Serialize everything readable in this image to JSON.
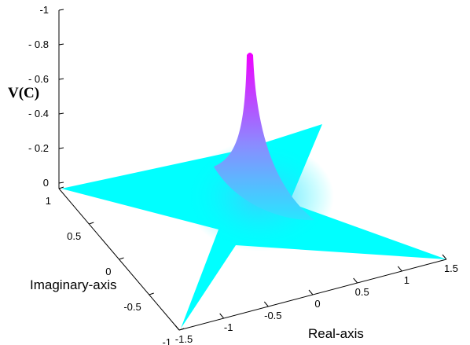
{
  "chart_data": {
    "type": "surface",
    "title": "",
    "zlabel": "V(C)",
    "xlabel": "Real-axis",
    "ylabel": "Imaginary-axis",
    "z_ticks": [
      "-1",
      "- 0.8",
      "- 0.6",
      "- 0.4",
      "- 0.2",
      "0"
    ],
    "z_tick_values": [
      -1,
      -0.8,
      -0.6,
      -0.4,
      -0.2,
      0
    ],
    "x_ticks": [
      "-1.5",
      "-1",
      "-0.5",
      "0",
      "0.5",
      "1",
      "1.5"
    ],
    "x_tick_values": [
      -1.5,
      -1,
      -0.5,
      0,
      0.5,
      1,
      1.5
    ],
    "y_ticks": [
      "1",
      "0.5",
      "0",
      "-0.5",
      "-1"
    ],
    "y_tick_values": [
      1,
      0.5,
      0,
      -0.5,
      -1
    ],
    "xlim": [
      -1.5,
      1.5
    ],
    "ylim": [
      -1,
      1
    ],
    "zlim": [
      -1,
      0
    ],
    "peak": {
      "x": 0,
      "y": 0,
      "z": -0.77
    },
    "colormap": [
      "#00ffff",
      "#ff00ff"
    ],
    "grid": false
  }
}
